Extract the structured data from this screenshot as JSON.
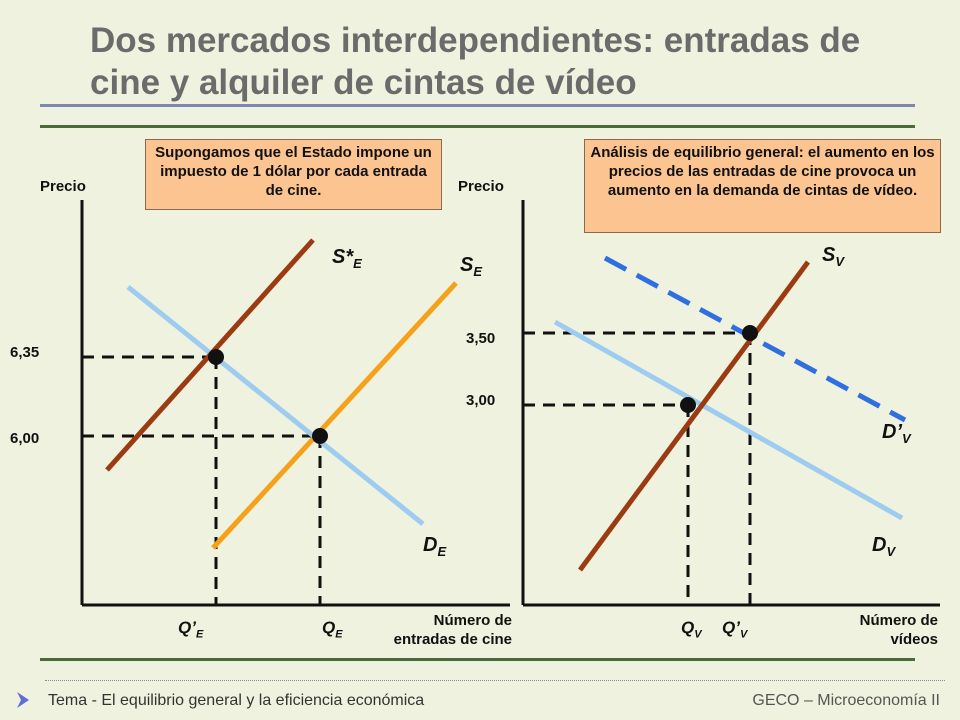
{
  "slide": {
    "title_line1": "Dos mercados interdependientes: entradas de",
    "title_line2": "cine y alquiler de cintas de vídeo"
  },
  "left_panel": {
    "note": "Supongamos que el Estado impone un impuesto de 1 dólar por cada entrada de cine.",
    "y_axis_label": "Precio",
    "x_axis_label_line1": "Número de",
    "x_axis_label_line2": "entradas de cine",
    "price_high": "6,35",
    "price_low": "6,00",
    "supply_tax_label": "S*",
    "supply_tax_sub": "E",
    "supply_label": "S",
    "supply_sub": "E",
    "demand_label": "D",
    "demand_sub": "E",
    "q_new_label": "Q’",
    "q_new_sub": "E",
    "q_old_label": "Q",
    "q_old_sub": "E",
    "colors": {
      "supply_tax": "#9b3b12",
      "supply": "#f5a21a",
      "demand": "#9ecbf0"
    }
  },
  "right_panel": {
    "note": "Análisis de equilibrio general: el aumento en los precios de las entradas de cine provoca un aumento en la demanda de cintas de vídeo.",
    "y_axis_label": "Precio",
    "x_axis_label_line1": "Número de",
    "x_axis_label_line2": "vídeos",
    "price_high": "3,50",
    "price_low": "3,00",
    "supply_label": "S",
    "supply_sub": "V",
    "demand_new_label": "D’",
    "demand_new_sub": "V",
    "demand_label": "D",
    "demand_sub": "V",
    "q_old_label": "Q",
    "q_old_sub": "V",
    "q_new_label": "Q’",
    "q_new_sub": "V",
    "colors": {
      "supply": "#9b3b12",
      "demand": "#9ecbf0",
      "demand_new": "#2f6fe0"
    }
  },
  "footer": {
    "left": "Tema  - El equilibrio general y la eficiencia económica",
    "right": "GECO – Microeconomía II"
  }
}
